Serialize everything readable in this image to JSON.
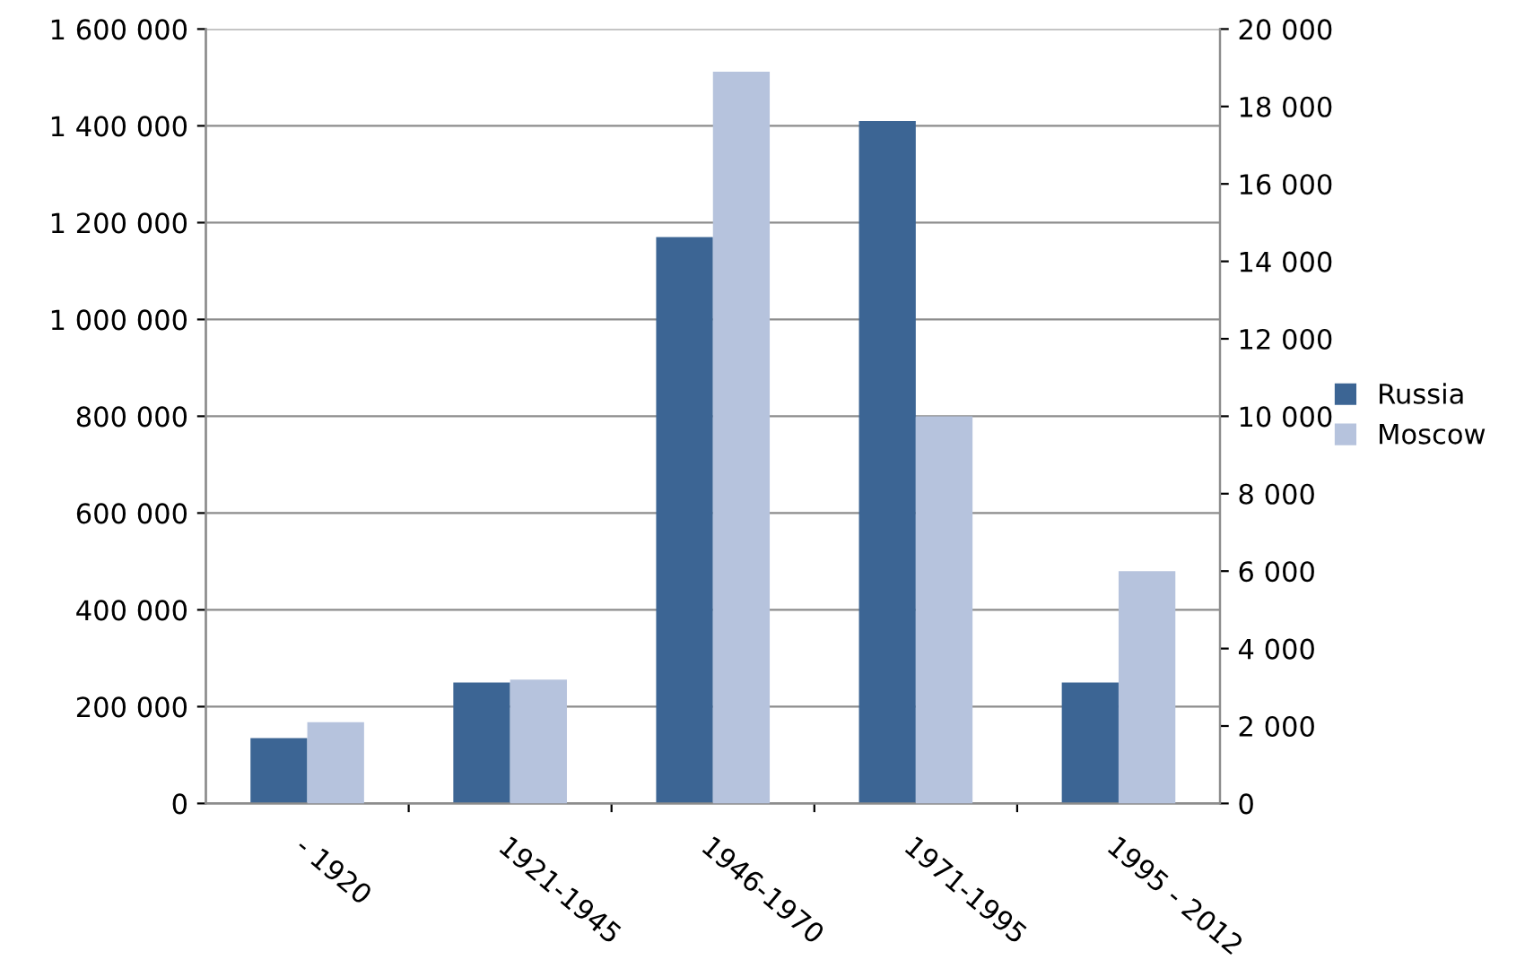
{
  "chart_data": {
    "type": "bar",
    "categories": [
      "- 1920",
      "1921-1945",
      "1946-1970",
      "1971-1995",
      "1995 - 2012"
    ],
    "series": [
      {
        "name": "Russia",
        "color": "#3c6594",
        "values": [
          135000,
          250000,
          1170000,
          1410000,
          250000
        ]
      },
      {
        "name": "Moscow",
        "color": "#b6c3dd",
        "values": [
          2100,
          3200,
          18900,
          10000,
          6000
        ],
        "axis": "y2"
      }
    ],
    "ylim": [
      0,
      1600000
    ],
    "yticks": [
      0,
      {
        "value": 200000,
        "label": "200 000"
      },
      {
        "value": 400000,
        "label": "400 000"
      },
      {
        "value": 600000,
        "label": "600 000"
      },
      {
        "value": 800000,
        "label": "800 000"
      },
      {
        "value": 1000000,
        "label": "1 000 000"
      },
      {
        "value": 1200000,
        "label": "1 200 000"
      },
      {
        "value": 1400000,
        "label": "1 400 000"
      },
      {
        "value": 1600000,
        "label": "1 600 000"
      }
    ],
    "y2lim": [
      0,
      20000
    ],
    "y2ticks": [
      0,
      {
        "value": 2000,
        "label": "2 000"
      },
      {
        "value": 4000,
        "label": "4 000"
      },
      {
        "value": 6000,
        "label": "6 000"
      },
      {
        "value": 8000,
        "label": "8 000"
      },
      {
        "value": 10000,
        "label": "10 000"
      },
      {
        "value": 12000,
        "label": "12 000"
      },
      {
        "value": 14000,
        "label": "14 000"
      },
      {
        "value": 16000,
        "label": "16 000"
      },
      {
        "value": 18000,
        "label": "18 000"
      },
      {
        "value": 20000,
        "label": "20 000"
      }
    ],
    "grid": "y",
    "legend": "right"
  }
}
